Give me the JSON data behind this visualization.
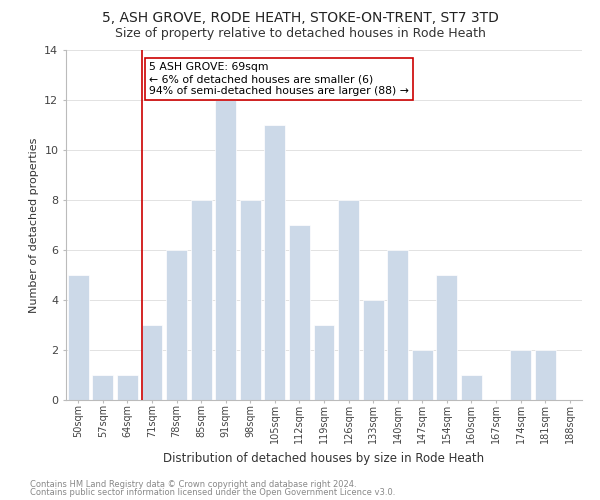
{
  "title": "5, ASH GROVE, RODE HEATH, STOKE-ON-TRENT, ST7 3TD",
  "subtitle": "Size of property relative to detached houses in Rode Heath",
  "xlabel": "Distribution of detached houses by size in Rode Heath",
  "ylabel": "Number of detached properties",
  "bin_labels": [
    "50sqm",
    "57sqm",
    "64sqm",
    "71sqm",
    "78sqm",
    "85sqm",
    "91sqm",
    "98sqm",
    "105sqm",
    "112sqm",
    "119sqm",
    "126sqm",
    "133sqm",
    "140sqm",
    "147sqm",
    "154sqm",
    "160sqm",
    "167sqm",
    "174sqm",
    "181sqm",
    "188sqm"
  ],
  "counts": [
    5,
    1,
    1,
    3,
    6,
    8,
    12,
    8,
    11,
    7,
    3,
    8,
    4,
    6,
    2,
    5,
    1,
    0,
    2,
    2,
    0
  ],
  "highlight_bin_index": 3,
  "bar_color": "#ccd9e8",
  "highlight_line_color": "#cc0000",
  "annotation_text": "5 ASH GROVE: 69sqm\n← 6% of detached houses are smaller (6)\n94% of semi-detached houses are larger (88) →",
  "annotation_box_color": "#ffffff",
  "annotation_box_edge": "#cc0000",
  "ylim": [
    0,
    14
  ],
  "yticks": [
    0,
    2,
    4,
    6,
    8,
    10,
    12,
    14
  ],
  "title_fontsize": 10,
  "subtitle_fontsize": 9,
  "footer1": "Contains HM Land Registry data © Crown copyright and database right 2024.",
  "footer2": "Contains public sector information licensed under the Open Government Licence v3.0."
}
